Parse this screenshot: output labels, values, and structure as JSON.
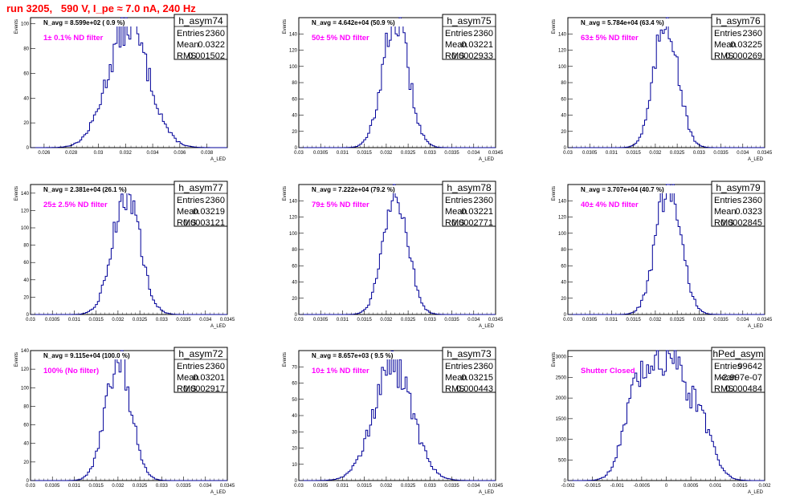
{
  "title": "run 3205,   590 V, I_pe ≈ 7.0 nA, 240 Hz",
  "colors": {
    "title": "#ff0000",
    "annotation": "#ff00ff",
    "histogram": "#000099",
    "frame": "#000000"
  },
  "chart_data": [
    {
      "type": "histogram",
      "name": "h_asym74",
      "xlabel": "A_LED",
      "ylabel": "Events",
      "xlim": [
        0.025,
        0.0395
      ],
      "ylim": [
        0,
        105
      ],
      "xticks": [
        "0.026",
        "0.028",
        "0.03",
        "0.032",
        "0.034",
        "0.036",
        "0.038"
      ],
      "xtick_vals": [
        0.026,
        0.028,
        0.03,
        0.032,
        0.034,
        0.036,
        0.038
      ],
      "yticks": [
        "0",
        "20",
        "40",
        "60",
        "80",
        "100"
      ],
      "ytick_vals": [
        0,
        20,
        40,
        60,
        80,
        100
      ],
      "annotation": "N_avg = 8.599e+02 ( 0.9 %)",
      "filter": "1± 0.1% ND filter",
      "stats": {
        "Entries": "2360",
        "Mean": "0.0322",
        "RMS": "0.001502"
      },
      "mean": 0.0322,
      "rms": 0.001502,
      "peak": 98
    },
    {
      "type": "histogram",
      "name": "h_asym75",
      "xlabel": "A_LED",
      "ylabel": "Events",
      "xlim": [
        0.03,
        0.0345
      ],
      "ylim": [
        0,
        160
      ],
      "xticks": [
        "0.03",
        "0.0305",
        "0.031",
        "0.0315",
        "0.032",
        "0.0325",
        "0.033",
        "0.0335",
        "0.034",
        "0.0345"
      ],
      "xtick_vals": [
        0.03,
        0.0305,
        0.031,
        0.0315,
        0.032,
        0.0325,
        0.033,
        0.0335,
        0.034,
        0.0345
      ],
      "yticks": [
        "0",
        "20",
        "40",
        "60",
        "80",
        "100",
        "120",
        "140"
      ],
      "ytick_vals": [
        0,
        20,
        40,
        60,
        80,
        100,
        120,
        140
      ],
      "annotation": "N_avg = 4.642e+04 (50.9 %)",
      "filter": "50± 5% ND filter",
      "stats": {
        "Entries": "2360",
        "Mean": "0.03221",
        "RMS": "0.0002933"
      },
      "mean": 0.03221,
      "rms": 0.0002933,
      "peak": 158
    },
    {
      "type": "histogram",
      "name": "h_asym76",
      "xlabel": "A_LED",
      "ylabel": "Events",
      "xlim": [
        0.03,
        0.0345
      ],
      "ylim": [
        0,
        160
      ],
      "xticks": [
        "0.03",
        "0.0305",
        "0.031",
        "0.0315",
        "0.032",
        "0.0325",
        "0.033",
        "0.0335",
        "0.034",
        "0.0345"
      ],
      "xtick_vals": [
        0.03,
        0.0305,
        0.031,
        0.0315,
        0.032,
        0.0325,
        0.033,
        0.0335,
        0.034,
        0.0345
      ],
      "yticks": [
        "0",
        "20",
        "40",
        "60",
        "80",
        "100",
        "120",
        "140"
      ],
      "ytick_vals": [
        0,
        20,
        40,
        60,
        80,
        100,
        120,
        140
      ],
      "annotation": "N_avg = 5.784e+04 (63.4 %)",
      "filter": "63± 5% ND filter",
      "stats": {
        "Entries": "2360",
        "Mean": "0.03225",
        "RMS": "0.000269"
      },
      "mean": 0.03225,
      "rms": 0.000269,
      "peak": 160
    },
    {
      "type": "histogram",
      "name": "h_asym77",
      "xlabel": "A_LED",
      "ylabel": "Events",
      "xlim": [
        0.03,
        0.0345
      ],
      "ylim": [
        0,
        150
      ],
      "xticks": [
        "0.03",
        "0.0305",
        "0.031",
        "0.0315",
        "0.032",
        "0.0325",
        "0.033",
        "0.0335",
        "0.034",
        "0.0345"
      ],
      "xtick_vals": [
        0.03,
        0.0305,
        0.031,
        0.0315,
        0.032,
        0.0325,
        0.033,
        0.0335,
        0.034,
        0.0345
      ],
      "yticks": [
        "0",
        "20",
        "40",
        "60",
        "80",
        "100",
        "120",
        "140"
      ],
      "ytick_vals": [
        0,
        20,
        40,
        60,
        80,
        100,
        120,
        140
      ],
      "annotation": "N_avg = 2.381e+04 (26.1 %)",
      "filter": "25± 2.5% ND filter",
      "stats": {
        "Entries": "2360",
        "Mean": "0.03219",
        "RMS": "0.0003121"
      },
      "mean": 0.03219,
      "rms": 0.0003121,
      "peak": 140
    },
    {
      "type": "histogram",
      "name": "h_asym78",
      "xlabel": "A_LED",
      "ylabel": "Events",
      "xlim": [
        0.03,
        0.0345
      ],
      "ylim": [
        0,
        160
      ],
      "xticks": [
        "0.03",
        "0.0305",
        "0.031",
        "0.0315",
        "0.032",
        "0.0325",
        "0.033",
        "0.0335",
        "0.034",
        "0.0345"
      ],
      "xtick_vals": [
        0.03,
        0.0305,
        0.031,
        0.0315,
        0.032,
        0.0325,
        0.033,
        0.0335,
        0.034,
        0.0345
      ],
      "yticks": [
        "0",
        "20",
        "40",
        "60",
        "80",
        "100",
        "120",
        "140"
      ],
      "ytick_vals": [
        0,
        20,
        40,
        60,
        80,
        100,
        120,
        140
      ],
      "annotation": "N_avg = 7.222e+04 (79.2 %)",
      "filter": "79± 5% ND filter",
      "stats": {
        "Entries": "2360",
        "Mean": "0.03221",
        "RMS": "0.0002771"
      },
      "mean": 0.03221,
      "rms": 0.0002771,
      "peak": 157
    },
    {
      "type": "histogram",
      "name": "h_asym79",
      "xlabel": "A_LED",
      "ylabel": "Events",
      "xlim": [
        0.03,
        0.0345
      ],
      "ylim": [
        0,
        160
      ],
      "xticks": [
        "0.03",
        "0.0305",
        "0.031",
        "0.0315",
        "0.032",
        "0.0325",
        "0.033",
        "0.0335",
        "0.034",
        "0.0345"
      ],
      "xtick_vals": [
        0.03,
        0.0305,
        0.031,
        0.0315,
        0.032,
        0.0325,
        0.033,
        0.0335,
        0.034,
        0.0345
      ],
      "yticks": [
        "0",
        "20",
        "40",
        "60",
        "80",
        "100",
        "120",
        "140"
      ],
      "ytick_vals": [
        0,
        20,
        40,
        60,
        80,
        100,
        120,
        140
      ],
      "annotation": "N_avg = 3.707e+04 (40.7 %)",
      "filter": "40± 4% ND filter",
      "stats": {
        "Entries": "2360",
        "Mean": "0.0323",
        "RMS": "0.0002845"
      },
      "mean": 0.0323,
      "rms": 0.0002845,
      "peak": 158
    },
    {
      "type": "histogram",
      "name": "h_asym72",
      "xlabel": "A_LED",
      "ylabel": "Events",
      "xlim": [
        0.03,
        0.0345
      ],
      "ylim": [
        0,
        140
      ],
      "xticks": [
        "0.03",
        "0.0305",
        "0.031",
        "0.0315",
        "0.032",
        "0.0325",
        "0.033",
        "0.0335",
        "0.034",
        "0.0345"
      ],
      "xtick_vals": [
        0.03,
        0.0305,
        0.031,
        0.0315,
        0.032,
        0.0325,
        0.033,
        0.0335,
        0.034,
        0.0345
      ],
      "yticks": [
        "0",
        "20",
        "40",
        "60",
        "80",
        "100",
        "120",
        "140"
      ],
      "ytick_vals": [
        0,
        20,
        40,
        60,
        80,
        100,
        120,
        140
      ],
      "annotation": "N_avg = 9.115e+04 (100.0 %)",
      "filter": "100% (No filter)",
      "stats": {
        "Entries": "2360",
        "Mean": "0.03201",
        "RMS": "0.0002917"
      },
      "mean": 0.03201,
      "rms": 0.0002917,
      "peak": 130
    },
    {
      "type": "histogram",
      "name": "h_asym73",
      "xlabel": "A_LED",
      "ylabel": "Events",
      "xlim": [
        0.03,
        0.0345
      ],
      "ylim": [
        0,
        80
      ],
      "xticks": [
        "0.03",
        "0.0305",
        "0.031",
        "0.0315",
        "0.032",
        "0.0325",
        "0.033",
        "0.0335",
        "0.034",
        "0.0345"
      ],
      "xtick_vals": [
        0.03,
        0.0305,
        0.031,
        0.0315,
        0.032,
        0.0325,
        0.033,
        0.0335,
        0.034,
        0.0345
      ],
      "yticks": [
        "0",
        "10",
        "20",
        "30",
        "40",
        "50",
        "60",
        "70"
      ],
      "ytick_vals": [
        0,
        10,
        20,
        30,
        40,
        50,
        60,
        70
      ],
      "annotation": "N_avg = 8.657e+03 ( 9.5 %)",
      "filter": "10± 1% ND filter",
      "stats": {
        "Entries": "2360",
        "Mean": "0.03215",
        "RMS": "0.000443"
      },
      "mean": 0.03215,
      "rms": 0.000443,
      "peak": 70
    },
    {
      "type": "histogram",
      "name": "hPed_asym",
      "xlabel": "A_LED",
      "ylabel": "Events",
      "xlim": [
        -0.002,
        0.002
      ],
      "ylim": [
        0,
        3150
      ],
      "xticks": [
        "-0.002",
        "-0.0015",
        "-0.001",
        "-0.0005",
        "0",
        "0.0005",
        "0.001",
        "0.0015",
        "0.002"
      ],
      "xtick_vals": [
        -0.002,
        -0.0015,
        -0.001,
        -0.0005,
        0,
        0.0005,
        0.001,
        0.0015,
        0.002
      ],
      "yticks": [
        "0",
        "500",
        "1000",
        "1500",
        "2000",
        "2500",
        "3000"
      ],
      "ytick_vals": [
        0,
        500,
        1000,
        1500,
        2000,
        2500,
        3000
      ],
      "annotation": "",
      "filter": "Shutter Closed",
      "stats": {
        "Entries": "99642",
        "Mean": "-2.997e-07",
        "RMS": "0.000484"
      },
      "mean": -2.997e-07,
      "rms": 0.000484,
      "peak": 3000,
      "shape": "pedestal"
    }
  ]
}
